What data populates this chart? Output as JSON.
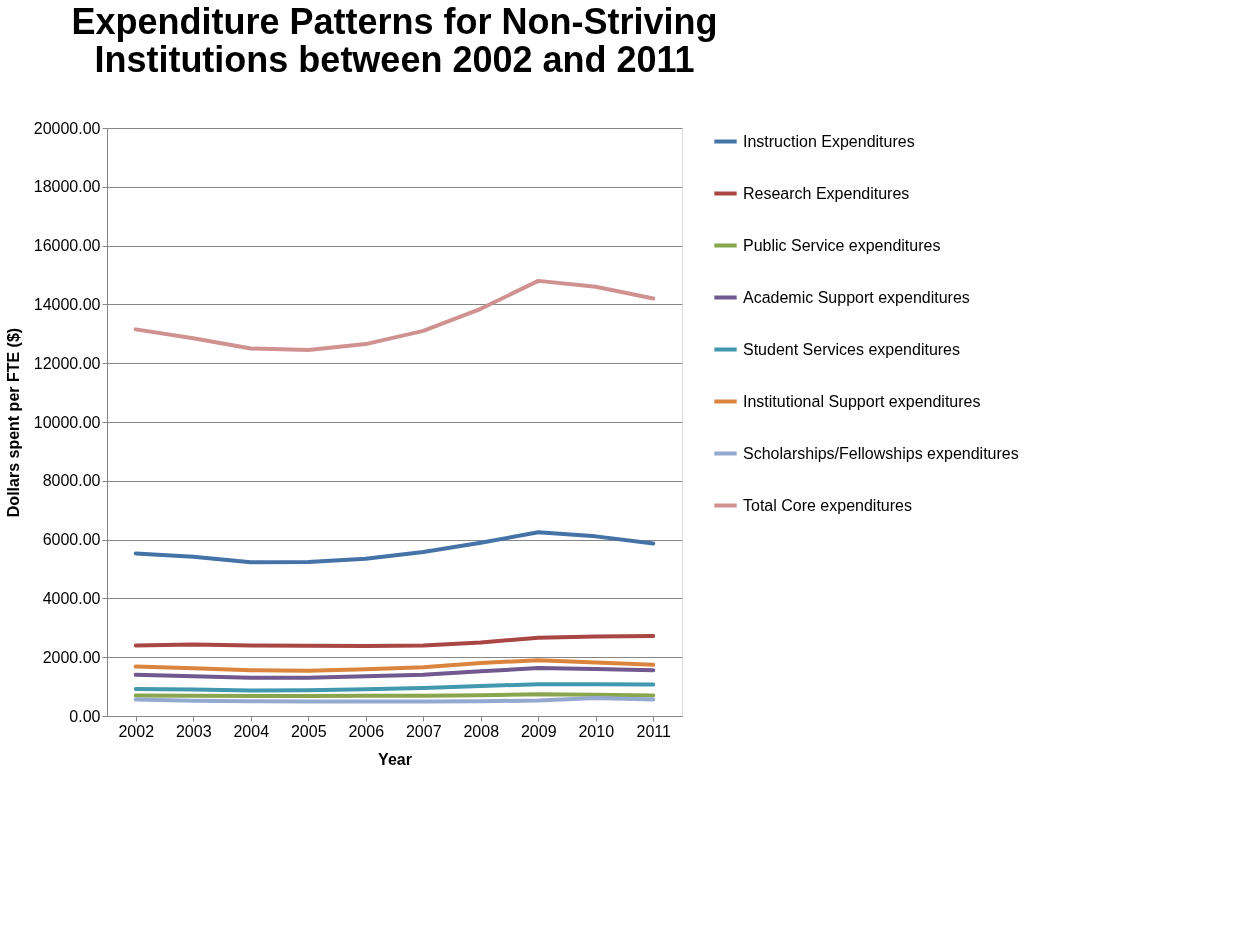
{
  "chart_data": {
    "type": "line",
    "title": "Expenditure Patterns for Non-Striving Institutions between 2002 and 2011",
    "xlabel": "Year",
    "ylabel": "Dollars spent per FTE ($)",
    "categories": [
      "2002",
      "2003",
      "2004",
      "2005",
      "2006",
      "2007",
      "2008",
      "2009",
      "2010",
      "2011"
    ],
    "series": [
      {
        "name": "Instruction Expenditures",
        "color": "#4572a7",
        "values": [
          5530,
          5420,
          5230,
          5240,
          5350,
          5580,
          5890,
          6250,
          6110,
          5870
        ]
      },
      {
        "name": "Research Expenditures",
        "color": "#aa4643",
        "values": [
          2400,
          2430,
          2400,
          2390,
          2380,
          2400,
          2500,
          2660,
          2700,
          2720
        ]
      },
      {
        "name": "Public Service expenditures",
        "color": "#89a54e",
        "values": [
          700,
          690,
          680,
          680,
          690,
          690,
          710,
          740,
          720,
          700
        ]
      },
      {
        "name": "Academic Support expenditures",
        "color": "#71588f",
        "values": [
          1400,
          1350,
          1300,
          1300,
          1350,
          1400,
          1520,
          1630,
          1600,
          1560
        ]
      },
      {
        "name": "Student Services expenditures",
        "color": "#4198af",
        "values": [
          920,
          900,
          870,
          880,
          910,
          950,
          1020,
          1080,
          1080,
          1070
        ]
      },
      {
        "name": "Institutional Support expenditures",
        "color": "#db843d",
        "values": [
          1680,
          1620,
          1560,
          1540,
          1590,
          1660,
          1800,
          1900,
          1820,
          1740
        ]
      },
      {
        "name": "Scholarships/Fellowships expenditures",
        "color": "#93a9cf",
        "values": [
          560,
          520,
          500,
          490,
          490,
          490,
          500,
          530,
          610,
          560
        ]
      },
      {
        "name": "Total Core expenditures",
        "color": "#d09291",
        "values": [
          13150,
          12850,
          12500,
          12450,
          12650,
          13100,
          13850,
          14800,
          14600,
          14200
        ]
      }
    ],
    "ylim": [
      0,
      20000
    ],
    "yticks": [
      {
        "value": 0,
        "label": "0.00"
      },
      {
        "value": 2000,
        "label": "2000.00"
      },
      {
        "value": 4000,
        "label": "4000.00"
      },
      {
        "value": 6000,
        "label": "6000.00"
      },
      {
        "value": 8000,
        "label": "8000.00"
      },
      {
        "value": 10000,
        "label": "10000.00"
      },
      {
        "value": 12000,
        "label": "12000.00"
      },
      {
        "value": 14000,
        "label": "14000.00"
      },
      {
        "value": 16000,
        "label": "16000.00"
      },
      {
        "value": 18000,
        "label": "18000.00"
      },
      {
        "value": 20000,
        "label": "20000.00"
      }
    ],
    "grid": "y",
    "legend": "right",
    "marker": "none",
    "line_style": "solid"
  }
}
